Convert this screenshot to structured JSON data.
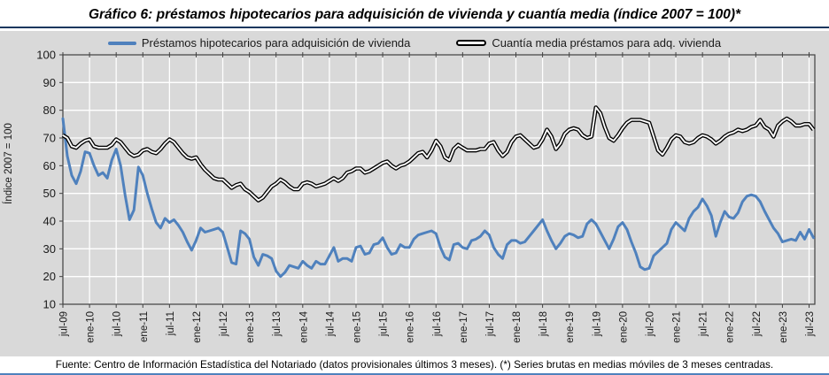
{
  "title": "Gráfico 6: préstamos hipotecarios para adquisición de vivienda y cuantía media (índice 2007 = 100)*",
  "footer": "Fuente: Centro de Información Estadística del Notariado (datos provisionales últimos 3 meses). (*) Series brutas en medias móviles de 3 meses centradas.",
  "colors": {
    "panel_bg": "#d9d9d9",
    "grid": "#ffffff",
    "axis": "#404040",
    "accent_blue": "#4f81bd",
    "title_rule": "#17375e"
  },
  "chart_data": {
    "type": "line",
    "title": "Gráfico 6: préstamos hipotecarios para adquisición de vivienda y cuantía media (índice 2007 = 100)*",
    "ylabel": "Índice 2007 = 100",
    "xlabel": "",
    "ylim": [
      10,
      100
    ],
    "yticks": [
      100,
      90,
      80,
      70,
      60,
      50,
      40,
      30,
      20,
      10
    ],
    "grid": true,
    "legend_position": "top",
    "x_start": "jul-09",
    "x_frequency": "monthly",
    "x_tick_labels": [
      "jul-09",
      "ene-10",
      "jul-10",
      "ene-11",
      "jul-11",
      "ene-12",
      "jul-12",
      "ene-13",
      "jul-13",
      "ene-14",
      "jul-14",
      "ene-15",
      "jul-15",
      "ene-16",
      "jul-16",
      "ene-17",
      "jul-17",
      "ene-18",
      "jul-18",
      "ene-19",
      "jul-19",
      "ene-20",
      "jul-20",
      "ene-21",
      "jul-21",
      "ene-22",
      "jul-22",
      "ene-23",
      "jul-23"
    ],
    "series": [
      {
        "name": "Préstamos hipotecarios para adquisición de vivienda",
        "color": "#4f81bd",
        "style": "solid",
        "values": [
          77,
          63.5,
          56.5,
          53.5,
          58,
          65,
          64.5,
          60,
          56.5,
          57.5,
          55.5,
          62,
          66,
          60,
          49.5,
          40.5,
          44,
          59.5,
          56.5,
          50,
          44.5,
          39.5,
          37.5,
          41,
          39.5,
          40.5,
          38.5,
          36,
          32.5,
          29.5,
          33,
          37.5,
          36,
          36.5,
          37,
          37.5,
          36,
          30.5,
          25,
          24.5,
          36.5,
          35.5,
          33.5,
          27,
          24,
          28,
          27.5,
          26.5,
          22,
          20,
          21.5,
          24,
          23.5,
          23,
          25.5,
          24,
          23,
          25.5,
          24.5,
          24.5,
          27.5,
          30.5,
          25.5,
          26.5,
          26.5,
          25.5,
          30.5,
          31,
          28,
          28.5,
          31.5,
          32,
          34,
          30.5,
          28,
          28.5,
          31.5,
          30.5,
          30.5,
          33.5,
          35,
          35.5,
          36,
          36.5,
          35.5,
          30.5,
          27,
          26,
          31.5,
          32,
          30.5,
          30,
          33,
          33.5,
          34.5,
          36.5,
          35,
          30.5,
          28,
          26.5,
          31.5,
          33,
          33,
          32,
          32.5,
          34.5,
          36.5,
          38.5,
          40.5,
          36.5,
          33,
          30,
          32,
          34.5,
          35.5,
          35,
          34,
          34.5,
          39,
          40.5,
          39,
          36,
          33,
          30,
          33.5,
          38,
          39.5,
          37,
          32.5,
          28.5,
          23.5,
          22.5,
          23,
          27.5,
          29,
          30.5,
          32,
          37,
          39.5,
          38,
          36.5,
          41,
          43.5,
          45,
          48,
          45.5,
          42,
          34.5,
          39.5,
          43.5,
          41.5,
          41,
          43,
          47,
          49,
          49.5,
          49,
          47,
          43.5,
          40.5,
          37.5,
          35.5,
          32.5,
          33,
          33.5,
          33,
          36,
          33.5,
          37,
          34
        ]
      },
      {
        "name": "Cuantía media préstamos para adq. vivienda",
        "color": "#000000",
        "style": "double-line",
        "values": [
          71,
          70,
          67,
          66.5,
          68,
          69,
          69.5,
          67,
          66.5,
          66.5,
          66.5,
          67.5,
          69.5,
          68.5,
          66.5,
          64.5,
          63.5,
          64,
          65.5,
          66,
          65,
          64.5,
          66,
          68,
          69.5,
          68.5,
          66.5,
          64.5,
          63,
          62.5,
          63,
          60.5,
          58.5,
          57,
          55.5,
          55,
          55,
          53.5,
          52,
          53,
          53.5,
          51.5,
          50.5,
          49,
          47.5,
          48.5,
          50.5,
          52.5,
          53.5,
          55,
          54,
          52.5,
          51.5,
          51.5,
          53.5,
          54,
          53.5,
          52.5,
          53,
          53.5,
          54.5,
          55.5,
          54.5,
          55.5,
          57.5,
          58,
          59,
          59,
          57.5,
          58,
          59,
          60,
          61,
          61.5,
          60,
          59,
          60,
          60.5,
          61.5,
          63,
          64.5,
          65,
          63,
          65.5,
          69,
          67,
          63,
          62,
          66,
          67.5,
          66.5,
          65.5,
          65.5,
          65.5,
          66,
          66,
          68,
          68.5,
          65.5,
          63.5,
          65,
          68.5,
          70.5,
          71,
          69.5,
          68,
          66.5,
          67,
          69.5,
          73,
          70.5,
          66,
          68,
          71.5,
          73,
          73.5,
          73,
          71,
          70,
          70.5,
          81,
          79,
          74,
          70,
          69,
          71,
          73.5,
          75.5,
          76.5,
          76.5,
          76.5,
          76,
          75.5,
          70.5,
          65.5,
          64,
          66.5,
          69.5,
          71,
          70.5,
          68.5,
          68,
          68.5,
          70,
          71,
          70.5,
          69.5,
          68,
          69,
          70.5,
          71.5,
          72,
          73,
          72.5,
          73,
          74,
          74.5,
          76.5,
          74,
          73,
          70.5,
          74.5,
          76,
          77,
          76,
          74.5,
          74.5,
          75,
          75,
          73
        ]
      }
    ]
  }
}
